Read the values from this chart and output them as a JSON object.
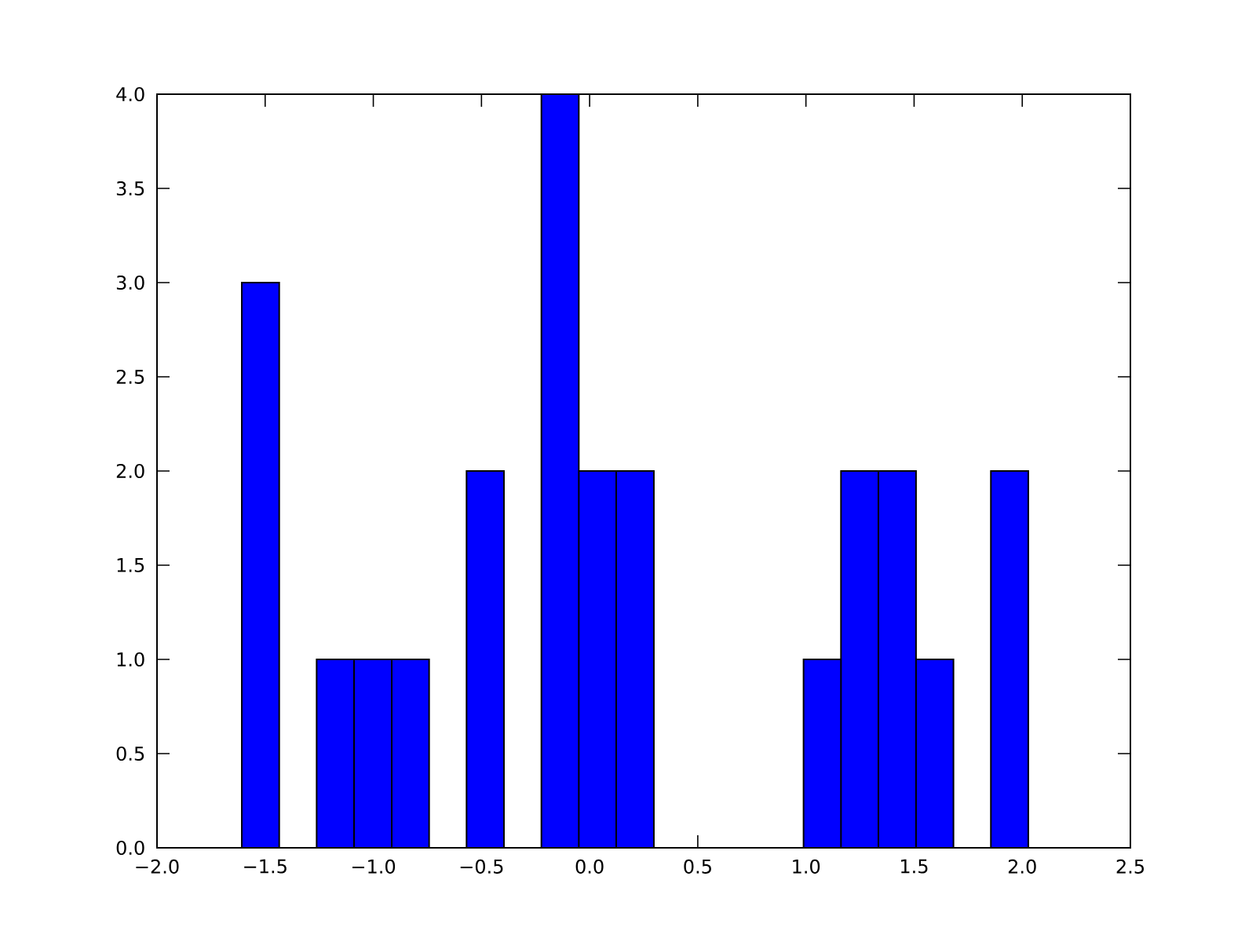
{
  "chart_data": {
    "type": "histogram",
    "bins": [
      -1.608,
      -1.435,
      -1.262,
      -1.089,
      -0.915,
      -0.742,
      -0.569,
      -0.396,
      -0.223,
      -0.05,
      0.123,
      0.297,
      0.47,
      0.643,
      0.816,
      0.989,
      1.162,
      1.335,
      1.509,
      1.682,
      1.855,
      2.028
    ],
    "values": [
      3,
      0,
      1,
      1,
      1,
      0,
      2,
      0,
      4,
      2,
      2,
      0,
      0,
      0,
      0,
      1,
      2,
      2,
      1,
      0,
      2
    ],
    "color": "#0000ff",
    "xlim": [
      -2.0,
      2.5
    ],
    "ylim": [
      0,
      4.0
    ],
    "xticks": [
      {
        "value": -2.0,
        "label": "−2.0"
      },
      {
        "value": -1.5,
        "label": "−1.5"
      },
      {
        "value": -1.0,
        "label": "−1.0"
      },
      {
        "value": -0.5,
        "label": "−0.5"
      },
      {
        "value": 0.0,
        "label": "0.0"
      },
      {
        "value": 0.5,
        "label": "0.5"
      },
      {
        "value": 1.0,
        "label": "1.0"
      },
      {
        "value": 1.5,
        "label": "1.5"
      },
      {
        "value": 2.0,
        "label": "2.0"
      },
      {
        "value": 2.5,
        "label": "2.5"
      }
    ],
    "yticks": [
      {
        "value": 0,
        "label": "0.0"
      },
      {
        "value": 0.5,
        "label": "0.5"
      },
      {
        "value": 1.0,
        "label": "1.0"
      },
      {
        "value": 1.5,
        "label": "1.5"
      },
      {
        "value": 2.0,
        "label": "2.0"
      },
      {
        "value": 2.5,
        "label": "2.5"
      },
      {
        "value": 3.0,
        "label": "3.0"
      },
      {
        "value": 3.5,
        "label": "3.5"
      },
      {
        "value": 4.0,
        "label": "4.0"
      }
    ]
  }
}
